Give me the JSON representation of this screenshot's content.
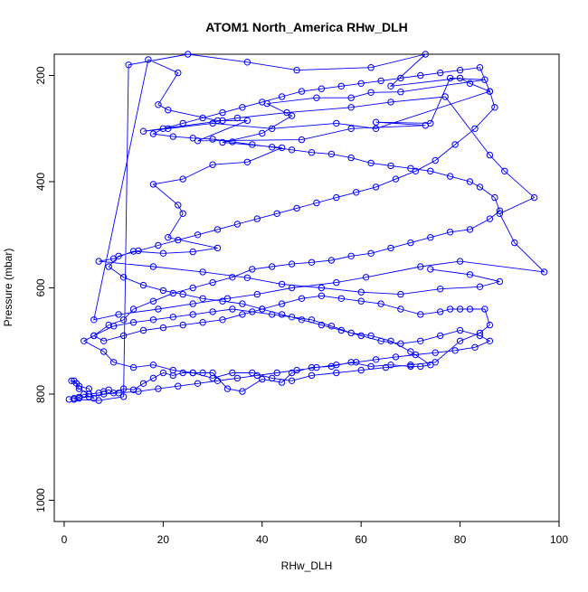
{
  "chart_data": {
    "type": "scatter",
    "title": "ATOM1 North_America RHw_DLH",
    "xlabel": "RHw_DLH",
    "ylabel": "Pressure (mbar)",
    "xlim": [
      -2,
      100
    ],
    "ylim": [
      1040,
      160
    ],
    "y_reversed": true,
    "x_ticks": [
      0,
      20,
      40,
      60,
      80,
      100
    ],
    "y_ticks": [
      200,
      400,
      600,
      800,
      1000
    ],
    "grid": false,
    "markers": "open-circle",
    "connected": true,
    "series_color": "#0000ff",
    "series": [
      {
        "points": [
          [
            1,
            810
          ],
          [
            2,
            808
          ],
          [
            3,
            806
          ],
          [
            4,
            800
          ],
          [
            6,
            808
          ],
          [
            5,
            790
          ],
          [
            3,
            785
          ],
          [
            2,
            775
          ],
          [
            1.5,
            775
          ],
          [
            2.5,
            780
          ],
          [
            3,
            790
          ],
          [
            5,
            800
          ],
          [
            7,
            798
          ],
          [
            8,
            795
          ],
          [
            9,
            792
          ],
          [
            10,
            798
          ],
          [
            12,
            790
          ],
          [
            14,
            792
          ],
          [
            16,
            780
          ],
          [
            18,
            770
          ],
          [
            20,
            760
          ],
          [
            22,
            765
          ],
          [
            24,
            760
          ],
          [
            26,
            760
          ],
          [
            28,
            760
          ],
          [
            30,
            760
          ],
          [
            33,
            790
          ],
          [
            36,
            795
          ],
          [
            40,
            772
          ],
          [
            44,
            778
          ],
          [
            46,
            760
          ],
          [
            50,
            750
          ],
          [
            54,
            748
          ],
          [
            58,
            740
          ],
          [
            62,
            748
          ],
          [
            66,
            745
          ],
          [
            70,
            748
          ],
          [
            72,
            748
          ],
          [
            74,
            745
          ],
          [
            70,
            720
          ],
          [
            66,
            700
          ],
          [
            62,
            690
          ],
          [
            58,
            685
          ],
          [
            54,
            672
          ],
          [
            50,
            660
          ],
          [
            46,
            655
          ],
          [
            42,
            650
          ],
          [
            38,
            645
          ],
          [
            34,
            640
          ],
          [
            30,
            645
          ],
          [
            26,
            650
          ],
          [
            22,
            655
          ],
          [
            18,
            660
          ],
          [
            14,
            665
          ],
          [
            10,
            672
          ],
          [
            6,
            690
          ],
          [
            4,
            700
          ],
          [
            8,
            720
          ],
          [
            10,
            740
          ],
          [
            14,
            750
          ],
          [
            18,
            745
          ],
          [
            22,
            755
          ],
          [
            26,
            760
          ],
          [
            30,
            770
          ],
          [
            34,
            760
          ],
          [
            38,
            760
          ],
          [
            42,
            770
          ],
          [
            46,
            775
          ],
          [
            50,
            765
          ],
          [
            55,
            760
          ],
          [
            60,
            755
          ],
          [
            65,
            750
          ],
          [
            70,
            745
          ],
          [
            75,
            740
          ],
          [
            80,
            700
          ],
          [
            84,
            685
          ],
          [
            86,
            670
          ],
          [
            85,
            640
          ],
          [
            82,
            640
          ],
          [
            80,
            640
          ],
          [
            78,
            640
          ],
          [
            76,
            645
          ],
          [
            72,
            650
          ],
          [
            68,
            640
          ],
          [
            64,
            630
          ],
          [
            60,
            625
          ],
          [
            56,
            620
          ],
          [
            52,
            615
          ],
          [
            48,
            620
          ],
          [
            44,
            630
          ],
          [
            40,
            640
          ],
          [
            36,
            650
          ],
          [
            32,
            660
          ],
          [
            28,
            665
          ],
          [
            24,
            670
          ],
          [
            20,
            675
          ],
          [
            16,
            680
          ],
          [
            12,
            690
          ],
          [
            8,
            700
          ],
          [
            6,
            690
          ],
          [
            9,
            670
          ],
          [
            12,
            660
          ],
          [
            14,
            640
          ],
          [
            18,
            625
          ],
          [
            22,
            610
          ],
          [
            26,
            600
          ],
          [
            30,
            590
          ],
          [
            34,
            580
          ],
          [
            38,
            565
          ],
          [
            42,
            560
          ],
          [
            46,
            555
          ],
          [
            50,
            552
          ],
          [
            54,
            548
          ],
          [
            58,
            540
          ],
          [
            62,
            535
          ],
          [
            66,
            525
          ],
          [
            70,
            515
          ],
          [
            74,
            505
          ],
          [
            78,
            495
          ],
          [
            82,
            490
          ],
          [
            86,
            470
          ],
          [
            88,
            455
          ],
          [
            87,
            430
          ],
          [
            84,
            410
          ],
          [
            82,
            400
          ],
          [
            78,
            390
          ],
          [
            74,
            380
          ],
          [
            70,
            375
          ],
          [
            66,
            370
          ],
          [
            62,
            365
          ],
          [
            58,
            355
          ],
          [
            54,
            348
          ],
          [
            50,
            345
          ],
          [
            46,
            340
          ],
          [
            42,
            335
          ],
          [
            38,
            330
          ],
          [
            34,
            325
          ],
          [
            30,
            320
          ],
          [
            26,
            318
          ],
          [
            22,
            315
          ],
          [
            18,
            310
          ],
          [
            20,
            300
          ],
          [
            24,
            290
          ],
          [
            28,
            280
          ],
          [
            32,
            270
          ],
          [
            36,
            260
          ],
          [
            40,
            250
          ],
          [
            44,
            240
          ],
          [
            48,
            230
          ],
          [
            52,
            225
          ],
          [
            56,
            220
          ],
          [
            60,
            215
          ],
          [
            64,
            210
          ],
          [
            68,
            205
          ],
          [
            72,
            200
          ],
          [
            76,
            195
          ],
          [
            80,
            190
          ],
          [
            84,
            185
          ],
          [
            86,
            230
          ],
          [
            87,
            260
          ],
          [
            83,
            300
          ],
          [
            79,
            330
          ],
          [
            75,
            360
          ],
          [
            71,
            380
          ],
          [
            67,
            395
          ],
          [
            63,
            410
          ],
          [
            59,
            420
          ],
          [
            55,
            430
          ],
          [
            51,
            440
          ],
          [
            47,
            450
          ],
          [
            43,
            460
          ],
          [
            39,
            470
          ],
          [
            35,
            480
          ],
          [
            31,
            490
          ],
          [
            27,
            500
          ],
          [
            23,
            510
          ],
          [
            19,
            520
          ],
          [
            15,
            530
          ],
          [
            11,
            540
          ],
          [
            9,
            560
          ],
          [
            12,
            580
          ],
          [
            16,
            595
          ],
          [
            20,
            605
          ],
          [
            24,
            612
          ],
          [
            28,
            620
          ],
          [
            32,
            625
          ],
          [
            36,
            630
          ],
          [
            40,
            640
          ],
          [
            44,
            650
          ],
          [
            48,
            660
          ],
          [
            52,
            670
          ],
          [
            56,
            680
          ],
          [
            60,
            690
          ],
          [
            64,
            700
          ],
          [
            68,
            705
          ],
          [
            72,
            700
          ],
          [
            76,
            690
          ],
          [
            80,
            680
          ],
          [
            84,
            690
          ],
          [
            86,
            700
          ],
          [
            83,
            712
          ],
          [
            79,
            718
          ],
          [
            75,
            722
          ],
          [
            71,
            726
          ],
          [
            67,
            730
          ],
          [
            63,
            735
          ],
          [
            59,
            740
          ],
          [
            55,
            745
          ],
          [
            51,
            750
          ],
          [
            47,
            755
          ],
          [
            43,
            760
          ],
          [
            39,
            765
          ],
          [
            35,
            770
          ],
          [
            31,
            775
          ],
          [
            27,
            780
          ],
          [
            23,
            785
          ],
          [
            19,
            790
          ],
          [
            15,
            795
          ],
          [
            11,
            798
          ],
          [
            8,
            800
          ],
          [
            5,
            805
          ],
          [
            3,
            808
          ],
          [
            2,
            810
          ],
          [
            7,
            812
          ],
          [
            12,
            805
          ],
          [
            13,
            180
          ],
          [
            25,
            160
          ],
          [
            37,
            175
          ],
          [
            47,
            190
          ],
          [
            62,
            185
          ],
          [
            73,
            160
          ],
          [
            66,
            220
          ],
          [
            80,
            205
          ],
          [
            82,
            215
          ],
          [
            86,
            230
          ],
          [
            63,
            300
          ],
          [
            55,
            290
          ],
          [
            42,
            300
          ],
          [
            30,
            290
          ],
          [
            21,
            300
          ],
          [
            16,
            305
          ],
          [
            32,
            285
          ],
          [
            35,
            280
          ],
          [
            45,
            270
          ],
          [
            58,
            260
          ],
          [
            66,
            250
          ],
          [
            77,
            240
          ],
          [
            86,
            350
          ],
          [
            89,
            380
          ],
          [
            95,
            430
          ],
          [
            88,
            460
          ],
          [
            91,
            515
          ],
          [
            97,
            570
          ],
          [
            80,
            550
          ],
          [
            72,
            560
          ],
          [
            61,
            580
          ],
          [
            55,
            590
          ],
          [
            46,
            600
          ],
          [
            39,
            612
          ],
          [
            33,
            620
          ],
          [
            26,
            630
          ],
          [
            19,
            640
          ],
          [
            11,
            650
          ],
          [
            6,
            660
          ],
          [
            17,
            170
          ],
          [
            23,
            195
          ],
          [
            19,
            255
          ],
          [
            21,
            265
          ],
          [
            31,
            285
          ],
          [
            37,
            285
          ],
          [
            27,
            323
          ],
          [
            48,
            321
          ],
          [
            58,
            300
          ],
          [
            73,
            294
          ],
          [
            63,
            288
          ],
          [
            74,
            290
          ],
          [
            78,
            205
          ],
          [
            85,
            208
          ],
          [
            68,
            231
          ],
          [
            62,
            232
          ],
          [
            58,
            242
          ],
          [
            51,
            242
          ],
          [
            41,
            253
          ],
          [
            46,
            276
          ],
          [
            40,
            309
          ],
          [
            32,
            326
          ],
          [
            44,
            336
          ],
          [
            37,
            363
          ],
          [
            30,
            368
          ],
          [
            24,
            395
          ],
          [
            18,
            405
          ],
          [
            23,
            444
          ],
          [
            24,
            460
          ],
          [
            21,
            505
          ],
          [
            31,
            525
          ],
          [
            26,
            532
          ],
          [
            20,
            535
          ],
          [
            14,
            531
          ],
          [
            10,
            545
          ],
          [
            7,
            550
          ],
          [
            18,
            560
          ],
          [
            28,
            570
          ],
          [
            37,
            581
          ],
          [
            44,
            593
          ],
          [
            52,
            600
          ],
          [
            60,
            608
          ],
          [
            68,
            612
          ],
          [
            76,
            602
          ],
          [
            84,
            598
          ],
          [
            88,
            588
          ],
          [
            82,
            575
          ],
          [
            74,
            565
          ]
        ]
      }
    ]
  }
}
